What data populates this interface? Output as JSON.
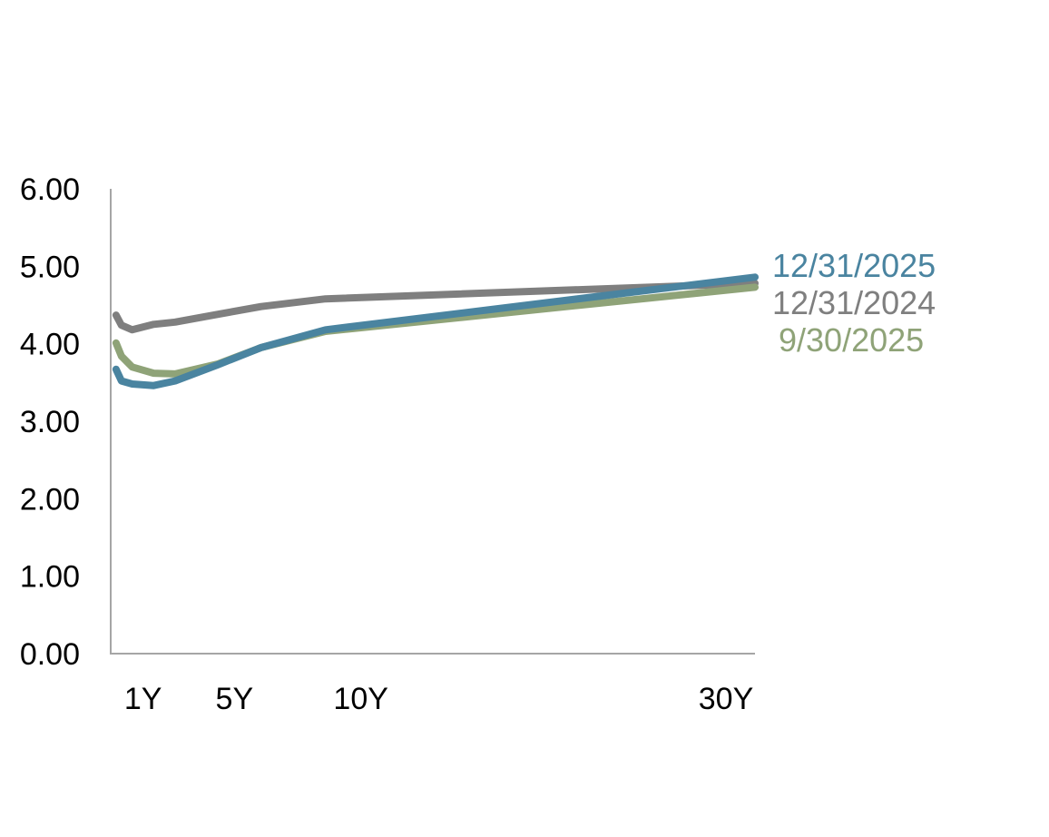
{
  "chart_data": {
    "type": "line",
    "title": "",
    "xlabel": "",
    "ylabel": "",
    "ylim": [
      0,
      6
    ],
    "yticks": [
      "0.00",
      "1.00",
      "2.00",
      "3.00",
      "4.00",
      "5.00",
      "6.00"
    ],
    "xlim_months": [
      0,
      360
    ],
    "xtick_labels": [
      {
        "label": "1Y",
        "months": 12
      },
      {
        "label": "5Y",
        "months": 60
      },
      {
        "label": "10Y",
        "months": 120
      },
      {
        "label": "30Y",
        "months": 360
      }
    ],
    "grid": false,
    "legend": "right, inline labels at line ends",
    "x_months": [
      3,
      6,
      12,
      24,
      36,
      60,
      84,
      120,
      360
    ],
    "series": [
      {
        "name": "12/31/2025",
        "color": "#4a84a0",
        "values": [
          3.67,
          3.52,
          3.48,
          3.46,
          3.52,
          3.73,
          3.95,
          4.18,
          4.86
        ]
      },
      {
        "name": "12/31/2024",
        "color": "#7f7f7f",
        "values": [
          4.37,
          4.24,
          4.18,
          4.25,
          4.28,
          4.38,
          4.48,
          4.58,
          4.78
        ]
      },
      {
        "name": "9/30/2025",
        "color": "#8fa378",
        "values": [
          4.01,
          3.84,
          3.7,
          3.62,
          3.61,
          3.74,
          3.95,
          4.16,
          4.73
        ]
      }
    ]
  }
}
